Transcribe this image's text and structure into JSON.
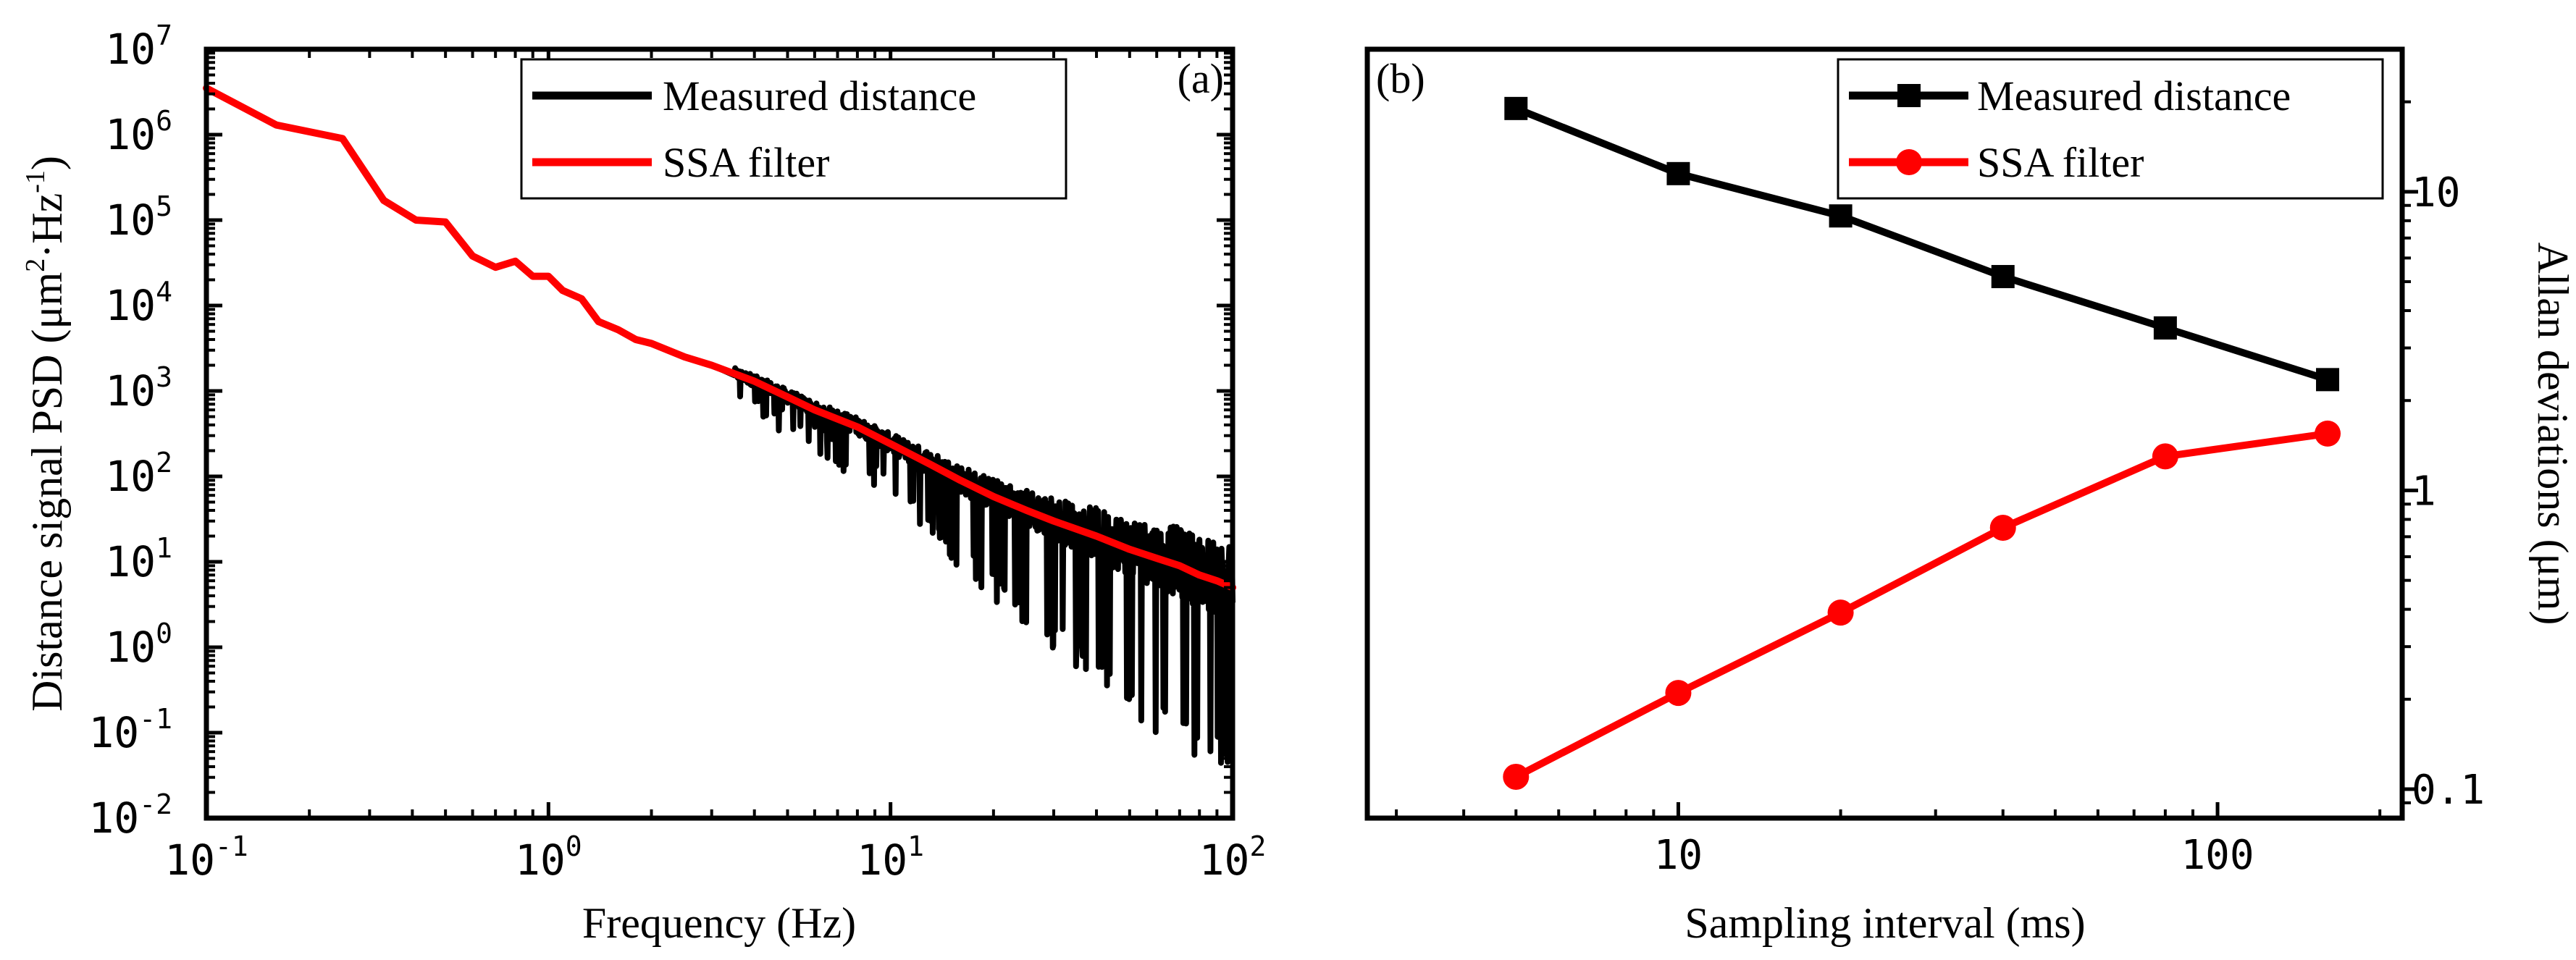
{
  "colors": {
    "measured": "#000000",
    "ssa": "#ff0000",
    "axis": "#000000",
    "background": "#ffffff"
  },
  "chart_data": [
    {
      "panel_label": "(a)",
      "type": "line",
      "title": "",
      "xlabel": "Frequency (Hz)",
      "ylabel_main": "Distance signal PSD (μm",
      "ylabel_sup1": "2",
      "ylabel_mid": "·Hz",
      "ylabel_sup2": "-1",
      "ylabel_end": ")",
      "xscale": "log",
      "yscale": "log",
      "xlim": [
        0.1,
        100
      ],
      "ylim": [
        0.01,
        10000000
      ],
      "x_ticks": [
        {
          "value": 0.1,
          "base": "10",
          "exp": "-1"
        },
        {
          "value": 1,
          "base": "10",
          "exp": "0"
        },
        {
          "value": 10,
          "base": "10",
          "exp": "1"
        },
        {
          "value": 100,
          "base": "10",
          "exp": "2"
        }
      ],
      "y_ticks": [
        {
          "value": 0.01,
          "base": "10",
          "exp": "-2"
        },
        {
          "value": 0.1,
          "base": "10",
          "exp": "-1"
        },
        {
          "value": 1,
          "base": "10",
          "exp": "0"
        },
        {
          "value": 10,
          "base": "10",
          "exp": "1"
        },
        {
          "value": 100,
          "base": "10",
          "exp": "2"
        },
        {
          "value": 1000,
          "base": "10",
          "exp": "3"
        },
        {
          "value": 10000,
          "base": "10",
          "exp": "4"
        },
        {
          "value": 100000,
          "base": "10",
          "exp": "5"
        },
        {
          "value": 1000000,
          "base": "10",
          "exp": "6"
        },
        {
          "value": 10000000,
          "base": "10",
          "exp": "7"
        }
      ],
      "legend": {
        "position": "top-right",
        "entries": [
          "Measured distance",
          "SSA filter"
        ]
      },
      "series": [
        {
          "name": "Measured distance",
          "style": "noisy-psd",
          "x": [
            0.1,
            0.16,
            0.25,
            0.33,
            0.41,
            0.5,
            0.6,
            0.7,
            0.8,
            0.9,
            1.0,
            1.1,
            1.25,
            1.4,
            1.6,
            1.8,
            2.0,
            2.5,
            3.0,
            4.0,
            5.0,
            6.0,
            8.0,
            10,
            13,
            16,
            20,
            25,
            30,
            40,
            50,
            60,
            70,
            80,
            90,
            100
          ],
          "values": [
            3500000,
            1300000,
            900000,
            170000,
            100000,
            95000,
            38000,
            28000,
            33000,
            22000,
            22000,
            15000,
            12000,
            6500,
            5200,
            4000,
            3600,
            2500,
            2000,
            1300,
            850,
            600,
            380,
            240,
            140,
            90,
            58,
            40,
            30,
            20,
            14,
            11,
            9,
            7,
            6,
            5
          ],
          "noise_from": 3.5,
          "noise_low": [
            [
              3.5,
              0.6
            ],
            [
              10,
              0.35
            ],
            [
              20,
              0.1
            ],
            [
              40,
              0.03
            ],
            [
              60,
              0.015
            ],
            [
              100,
              0.01
            ]
          ],
          "noise_high": [
            [
              3.5,
              1.3
            ],
            [
              10,
              1.6
            ],
            [
              20,
              2.2
            ],
            [
              40,
              3.5
            ],
            [
              60,
              5
            ],
            [
              100,
              7
            ]
          ]
        },
        {
          "name": "SSA filter",
          "style": "line",
          "x": [
            0.1,
            0.16,
            0.25,
            0.33,
            0.41,
            0.5,
            0.6,
            0.7,
            0.8,
            0.9,
            1.0,
            1.1,
            1.25,
            1.4,
            1.6,
            1.8,
            2.0,
            2.5,
            3.0,
            4.0,
            5.0,
            6.0,
            8.0,
            10,
            13,
            16,
            20,
            25,
            30,
            40,
            50,
            60,
            70,
            80,
            90,
            100
          ],
          "values": [
            3500000,
            1300000,
            900000,
            170000,
            100000,
            95000,
            38000,
            28000,
            33000,
            22000,
            22000,
            15000,
            12000,
            6500,
            5200,
            4000,
            3600,
            2500,
            2000,
            1300,
            850,
            600,
            380,
            240,
            140,
            90,
            58,
            40,
            30,
            20,
            14,
            11,
            9,
            7,
            6,
            5
          ]
        }
      ]
    },
    {
      "panel_label": "(b)",
      "type": "line",
      "title": "",
      "xlabel": "Sampling interval (ms)",
      "ylabel": "Allan deviations (μm)",
      "ylabel_side": "right",
      "xscale": "log",
      "yscale": "log",
      "xlim": [
        2.65,
        220
      ],
      "ylim": [
        0.08,
        30
      ],
      "x_ticks": [
        {
          "value": 10,
          "label": "10"
        },
        {
          "value": 100,
          "label": "100"
        }
      ],
      "y_ticks": [
        {
          "value": 0.1,
          "label": "0.1"
        },
        {
          "value": 1,
          "label": "1"
        },
        {
          "value": 10,
          "label": "10"
        }
      ],
      "legend": {
        "position": "top-right",
        "entries": [
          "Measured distance",
          "SSA filter"
        ]
      },
      "series": [
        {
          "name": "Measured distance",
          "marker": "square",
          "x": [
            5,
            10,
            20,
            40,
            80,
            160
          ],
          "values": [
            19,
            11.5,
            8.3,
            5.2,
            3.5,
            2.35
          ]
        },
        {
          "name": "SSA filter",
          "marker": "circle",
          "x": [
            5,
            10,
            20,
            40,
            80,
            160
          ],
          "values": [
            0.11,
            0.21,
            0.39,
            0.75,
            1.3,
            1.55
          ]
        }
      ]
    }
  ]
}
